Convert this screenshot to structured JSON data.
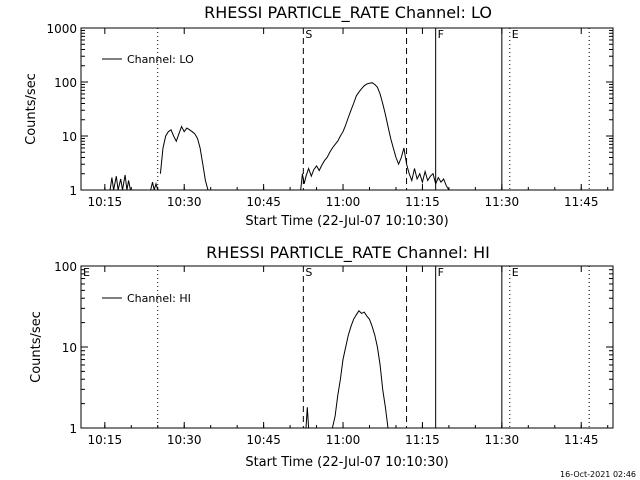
{
  "footer": {
    "timestamp": "16-Oct-2021 02:46"
  },
  "chart_data": [
    {
      "type": "line",
      "title": "RHESSI PARTICLE_RATE Channel: LO",
      "xlabel": "Start Time (22-Jul-07 10:10:30)",
      "ylabel": "Counts/sec",
      "legend": "Channel: LO",
      "legend_position": "top-left",
      "xlim": [
        "10:10:30",
        "11:51:00"
      ],
      "ylim": [
        1,
        1000
      ],
      "yscale": "log",
      "yticks": [
        "1",
        "10",
        "100",
        "1000"
      ],
      "xticks": [
        "10:15",
        "10:30",
        "10:45",
        "11:00",
        "11:15",
        "11:30",
        "11:45"
      ],
      "markers": [
        {
          "time": "10:25:00",
          "style": "dotted",
          "label": ""
        },
        {
          "time": "10:52:30",
          "style": "dashed",
          "label": "S"
        },
        {
          "time": "11:12:00",
          "style": "dashed",
          "label": ""
        },
        {
          "time": "11:17:30",
          "style": "solid",
          "label": "F"
        },
        {
          "time": "11:30:00",
          "style": "solid",
          "label": ""
        },
        {
          "time": "11:31:30",
          "style": "dotted",
          "label": "E"
        },
        {
          "time": "11:46:30",
          "style": "dotted",
          "label": ""
        }
      ],
      "series": [
        {
          "name": "Channel: LO",
          "segments": [
            [
              [
                "10:16:00",
                1
              ],
              [
                "10:16:20",
                1.7
              ],
              [
                "10:16:40",
                1
              ],
              [
                "10:17:10",
                1.8
              ],
              [
                "10:17:30",
                1
              ],
              [
                "10:18:00",
                1.6
              ],
              [
                "10:18:20",
                1
              ],
              [
                "10:18:50",
                1.9
              ],
              [
                "10:19:10",
                1
              ],
              [
                "10:19:30",
                1.5
              ],
              [
                "10:19:50",
                1
              ]
            ],
            [
              [
                "10:23:40",
                1
              ],
              [
                "10:24:00",
                1.4
              ],
              [
                "10:24:20",
                1
              ],
              [
                "10:24:40",
                1.3
              ],
              [
                "10:25:00",
                1
              ]
            ],
            [
              [
                "10:25:30",
                2
              ],
              [
                "10:26:00",
                6
              ],
              [
                "10:26:30",
                10
              ],
              [
                "10:27:00",
                12
              ],
              [
                "10:27:30",
                13
              ],
              [
                "10:28:00",
                10
              ],
              [
                "10:28:30",
                8
              ],
              [
                "10:29:00",
                11
              ],
              [
                "10:29:30",
                15
              ],
              [
                "10:30:00",
                12
              ],
              [
                "10:30:30",
                14
              ],
              [
                "10:31:00",
                13
              ],
              [
                "10:31:30",
                12
              ],
              [
                "10:32:00",
                11
              ],
              [
                "10:32:30",
                9
              ],
              [
                "10:33:00",
                6
              ],
              [
                "10:33:30",
                3
              ],
              [
                "10:34:00",
                1.5
              ],
              [
                "10:34:30",
                1
              ]
            ],
            [
              [
                "10:52:00",
                1
              ],
              [
                "10:52:20",
                2
              ],
              [
                "10:52:40",
                1.3
              ],
              [
                "10:53:00",
                1.8
              ],
              [
                "10:53:30",
                2.5
              ],
              [
                "10:54:00",
                1.8
              ],
              [
                "10:54:30",
                2.4
              ],
              [
                "10:55:00",
                2.8
              ],
              [
                "10:55:30",
                2.3
              ],
              [
                "10:56:00",
                2.9
              ],
              [
                "10:56:30",
                3.5
              ],
              [
                "10:57:00",
                4
              ],
              [
                "10:57:30",
                5
              ],
              [
                "10:58:00",
                6
              ],
              [
                "10:58:30",
                7
              ],
              [
                "10:59:00",
                8
              ],
              [
                "10:59:30",
                10
              ],
              [
                "11:00:00",
                12
              ],
              [
                "11:00:30",
                16
              ],
              [
                "11:01:00",
                22
              ],
              [
                "11:01:30",
                30
              ],
              [
                "11:02:00",
                40
              ],
              [
                "11:02:30",
                55
              ],
              [
                "11:03:00",
                65
              ],
              [
                "11:03:30",
                75
              ],
              [
                "11:04:00",
                85
              ],
              [
                "11:04:30",
                92
              ],
              [
                "11:05:00",
                95
              ],
              [
                "11:05:30",
                97
              ],
              [
                "11:06:00",
                90
              ],
              [
                "11:06:30",
                80
              ],
              [
                "11:07:00",
                60
              ],
              [
                "11:07:30",
                40
              ],
              [
                "11:08:00",
                25
              ],
              [
                "11:08:30",
                15
              ],
              [
                "11:09:00",
                9
              ],
              [
                "11:09:30",
                6
              ],
              [
                "11:10:00",
                4
              ],
              [
                "11:10:30",
                3
              ],
              [
                "11:11:00",
                4
              ],
              [
                "11:11:30",
                6
              ],
              [
                "11:12:00",
                3
              ],
              [
                "11:12:30",
                2
              ],
              [
                "11:13:00",
                1.5
              ],
              [
                "11:13:30",
                2.5
              ],
              [
                "11:14:00",
                1.6
              ],
              [
                "11:14:30",
                2
              ],
              [
                "11:15:00",
                1.4
              ],
              [
                "11:15:30",
                2.2
              ],
              [
                "11:16:00",
                1.5
              ],
              [
                "11:16:30",
                1.8
              ],
              [
                "11:17:00",
                2
              ],
              [
                "11:17:30",
                1.3
              ],
              [
                "11:18:00",
                1.7
              ],
              [
                "11:18:30",
                1.4
              ],
              [
                "11:19:00",
                1.6
              ],
              [
                "11:19:30",
                1.2
              ],
              [
                "11:20:00",
                1
              ]
            ]
          ]
        }
      ]
    },
    {
      "type": "line",
      "title": "RHESSI PARTICLE_RATE Channel: HI",
      "xlabel": "Start Time (22-Jul-07 10:10:30)",
      "ylabel": "Counts/sec",
      "legend": "Channel: HI",
      "legend_position": "top-left",
      "xlim": [
        "10:10:30",
        "11:51:00"
      ],
      "ylim": [
        1,
        100
      ],
      "yscale": "log",
      "yticks": [
        "1",
        "10",
        "100"
      ],
      "xticks": [
        "10:15",
        "10:30",
        "10:45",
        "11:00",
        "11:15",
        "11:30",
        "11:45"
      ],
      "markers": [
        {
          "time": "10:10:30",
          "style": "none",
          "label": "E"
        },
        {
          "time": "10:25:00",
          "style": "dotted",
          "label": ""
        },
        {
          "time": "10:52:30",
          "style": "dashed",
          "label": "S"
        },
        {
          "time": "11:12:00",
          "style": "dashed",
          "label": ""
        },
        {
          "time": "11:17:30",
          "style": "solid",
          "label": "F"
        },
        {
          "time": "11:30:00",
          "style": "solid",
          "label": ""
        },
        {
          "time": "11:31:30",
          "style": "dotted",
          "label": "E"
        },
        {
          "time": "11:46:30",
          "style": "dotted",
          "label": ""
        }
      ],
      "series": [
        {
          "name": "Channel: HI",
          "segments": [
            [
              [
                "10:53:00",
                1
              ],
              [
                "10:53:15",
                1.8
              ],
              [
                "10:53:30",
                1
              ]
            ],
            [
              [
                "10:58:00",
                1
              ],
              [
                "10:58:30",
                1.4
              ],
              [
                "10:59:00",
                2.5
              ],
              [
                "10:59:30",
                4
              ],
              [
                "11:00:00",
                7
              ],
              [
                "11:00:30",
                10
              ],
              [
                "11:01:00",
                14
              ],
              [
                "11:01:30",
                18
              ],
              [
                "11:02:00",
                22
              ],
              [
                "11:02:30",
                25
              ],
              [
                "11:03:00",
                28
              ],
              [
                "11:03:30",
                26
              ],
              [
                "11:04:00",
                27
              ],
              [
                "11:04:30",
                24
              ],
              [
                "11:05:00",
                22
              ],
              [
                "11:05:30",
                18
              ],
              [
                "11:06:00",
                14
              ],
              [
                "11:06:30",
                10
              ],
              [
                "11:07:00",
                6
              ],
              [
                "11:07:30",
                3
              ],
              [
                "11:08:00",
                1.8
              ],
              [
                "11:08:30",
                1
              ]
            ]
          ]
        }
      ]
    }
  ]
}
